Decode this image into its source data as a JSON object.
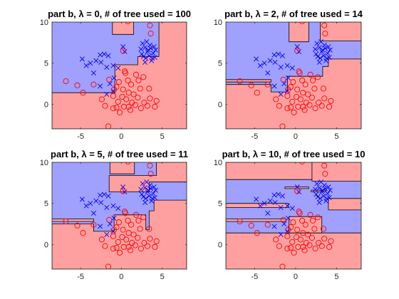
{
  "colors": {
    "class_x_region": "#a0a0ff",
    "class_o_region": "#ffa0a0",
    "x_marker": "#0000ff",
    "o_marker": "#ff0000",
    "boundary": "#000000",
    "axes": "#262626"
  },
  "points": {
    "x_class": [
      [
        -4.8,
        5.5
      ],
      [
        -4.3,
        4.7
      ],
      [
        -3.4,
        3.8
      ],
      [
        -3.8,
        5.0
      ],
      [
        -3.1,
        5.3
      ],
      [
        -2.6,
        6.0
      ],
      [
        -2.1,
        6.1
      ],
      [
        -1.6,
        5.9
      ],
      [
        -2.5,
        5.1
      ],
      [
        -1.8,
        4.5
      ],
      [
        -1.0,
        4.7
      ],
      [
        -0.4,
        4.4
      ],
      [
        -0.9,
        3.2
      ],
      [
        -1.4,
        2.5
      ],
      [
        -2.6,
        2.2
      ],
      [
        -1.8,
        1.2
      ],
      [
        -1.0,
        1.6
      ],
      [
        0.2,
        7.0
      ],
      [
        0.4,
        6.4
      ],
      [
        2.6,
        7.4
      ],
      [
        2.9,
        6.9
      ],
      [
        3.2,
        6.4
      ],
      [
        3.6,
        6.8
      ],
      [
        3.9,
        6.2
      ],
      [
        2.5,
        6.1
      ],
      [
        3.0,
        5.6
      ],
      [
        3.4,
        5.9
      ],
      [
        4.1,
        5.7
      ],
      [
        3.7,
        5.3
      ],
      [
        2.9,
        5.1
      ],
      [
        3.5,
        7.2
      ],
      [
        4.2,
        6.6
      ],
      [
        2.7,
        5.8
      ],
      [
        3.3,
        6.6
      ],
      [
        4.0,
        7.0
      ],
      [
        3.1,
        7.6
      ],
      [
        2.4,
        6.7
      ],
      [
        3.8,
        5.6
      ]
    ],
    "o_class": [
      [
        -6.8,
        2.8
      ],
      [
        -5.4,
        2.3
      ],
      [
        -4.7,
        1.4
      ],
      [
        -3.4,
        2.4
      ],
      [
        -2.4,
        0.6
      ],
      [
        -2.0,
        -0.2
      ],
      [
        -1.5,
        3.0
      ],
      [
        -1.0,
        1.0
      ],
      [
        -1.0,
        -0.5
      ],
      [
        -0.6,
        2.1
      ],
      [
        -0.4,
        0.3
      ],
      [
        -0.2,
        -1.0
      ],
      [
        -0.6,
        -0.4
      ],
      [
        0.1,
        0.9
      ],
      [
        0.2,
        1.8
      ],
      [
        0.3,
        -0.3
      ],
      [
        0.5,
        3.8
      ],
      [
        0.8,
        2.9
      ],
      [
        0.9,
        1.4
      ],
      [
        0.6,
        0.6
      ],
      [
        1.1,
        -0.7
      ],
      [
        1.3,
        0.2
      ],
      [
        1.5,
        1.2
      ],
      [
        1.2,
        2.4
      ],
      [
        1.8,
        3.6
      ],
      [
        2.1,
        2.9
      ],
      [
        2.3,
        1.9
      ],
      [
        2.0,
        0.8
      ],
      [
        2.4,
        -0.5
      ],
      [
        2.8,
        0.2
      ],
      [
        3.2,
        -0.2
      ],
      [
        3.5,
        0.7
      ],
      [
        3.4,
        1.9
      ],
      [
        4.1,
        -0.3
      ],
      [
        4.3,
        0.4
      ],
      [
        -1.6,
        -2.7
      ],
      [
        0.9,
        -0.3
      ],
      [
        1.7,
        -0.1
      ],
      [
        -0.3,
        2.7
      ],
      [
        2.7,
        3.3
      ],
      [
        0.8,
        10.1
      ],
      [
        3.5,
        9.6
      ],
      [
        0.2,
        6.5
      ],
      [
        3.6,
        8.6
      ],
      [
        0.4,
        4.0
      ],
      [
        -0.9,
        1.8
      ]
    ]
  },
  "chart_data": [
    {
      "type": "scatter",
      "title": "part b, λ = 0, # of tree used = 100",
      "xlim": [
        -8.5,
        8
      ],
      "ylim": [
        -3,
        10
      ],
      "xticks": [
        -5,
        0,
        5
      ],
      "yticks": [
        0,
        5,
        10
      ],
      "xticklabels": [
        "-5",
        "0",
        "5"
      ],
      "yticklabels": [
        "0",
        "5",
        "10"
      ],
      "regions_o": [
        [
          [
            -8.5,
            -3
          ],
          [
            8,
            -3
          ],
          [
            8,
            10
          ],
          [
            4.6,
            10
          ],
          [
            4.6,
            5.8
          ],
          [
            2.0,
            5.8
          ],
          [
            2.0,
            4.8
          ],
          [
            -0.8,
            4.8
          ],
          [
            -0.8,
            1.4
          ],
          [
            -8.5,
            1.4
          ]
        ],
        [
          [
            -1.1,
            8.5
          ],
          [
            1.5,
            8.5
          ],
          [
            1.5,
            10
          ],
          [
            -1.1,
            10
          ]
        ]
      ]
    },
    {
      "type": "scatter",
      "title": "part b, λ = 2, # of tree used = 14",
      "xlim": [
        -8.5,
        8
      ],
      "ylim": [
        -3,
        10
      ],
      "xticks": [
        -5,
        0,
        5
      ],
      "yticks": [
        0,
        5,
        10
      ],
      "xticklabels": [
        "-5",
        "0",
        "5"
      ],
      "yticklabels": [
        "0",
        "5",
        "10"
      ],
      "regions_o": [
        [
          [
            -8.5,
            -3
          ],
          [
            8,
            -3
          ],
          [
            8,
            5.5
          ],
          [
            4.0,
            5.5
          ],
          [
            4.0,
            4.6
          ],
          [
            3.3,
            4.6
          ],
          [
            3.3,
            3.4
          ],
          [
            1.0,
            3.4
          ],
          [
            -1.0,
            3.4
          ],
          [
            -1.0,
            1.5
          ],
          [
            -3.0,
            1.5
          ],
          [
            -3.0,
            2.4
          ],
          [
            -8.5,
            2.4
          ]
        ],
        [
          [
            -8.5,
            2.7
          ],
          [
            -3.0,
            2.7
          ],
          [
            -3.0,
            3.0
          ],
          [
            -8.5,
            3.0
          ]
        ],
        [
          [
            3.0,
            7.7
          ],
          [
            8,
            7.7
          ],
          [
            8,
            10
          ],
          [
            3.0,
            10
          ]
        ],
        [
          [
            -0.8,
            7.6
          ],
          [
            1.6,
            7.6
          ],
          [
            1.6,
            10
          ],
          [
            -0.8,
            10
          ]
        ]
      ]
    },
    {
      "type": "scatter",
      "title": "part b, λ = 5, # of tree used = 11",
      "xlim": [
        -8.5,
        8
      ],
      "ylim": [
        -3,
        10
      ],
      "xticks": [
        -5,
        0,
        5
      ],
      "yticks": [
        0,
        5,
        10
      ],
      "xticklabels": [
        "-5",
        "0",
        "5"
      ],
      "yticklabels": [
        "0",
        "5",
        "10"
      ],
      "regions_o": [
        [
          [
            -8.5,
            -3
          ],
          [
            8,
            -3
          ],
          [
            8,
            5.4
          ],
          [
            4.0,
            5.4
          ],
          [
            4.0,
            4.1
          ],
          [
            3.4,
            4.1
          ],
          [
            3.4,
            1.8
          ],
          [
            3.0,
            1.8
          ],
          [
            3.0,
            3.6
          ],
          [
            -0.9,
            3.6
          ],
          [
            -0.9,
            1.6
          ],
          [
            -3.4,
            1.6
          ],
          [
            -3.4,
            2.5
          ],
          [
            -8.5,
            2.5
          ]
        ],
        [
          [
            -8.5,
            2.8
          ],
          [
            -3.4,
            2.8
          ],
          [
            -3.4,
            3.1
          ],
          [
            -8.5,
            3.1
          ]
        ],
        [
          [
            -1.5,
            6.4
          ],
          [
            3.4,
            6.4
          ],
          [
            3.4,
            7.6
          ],
          [
            8,
            7.6
          ],
          [
            8,
            10
          ],
          [
            4.3,
            10
          ],
          [
            4.3,
            8.4
          ],
          [
            -1.5,
            8.4
          ]
        ],
        [
          [
            -1.4,
            8.6
          ],
          [
            1.6,
            8.6
          ],
          [
            1.6,
            10
          ],
          [
            -1.4,
            10
          ]
        ]
      ]
    },
    {
      "type": "scatter",
      "title": "part b, λ = 10, # of tree used = 10",
      "xlim": [
        -8.5,
        8
      ],
      "ylim": [
        -3,
        10
      ],
      "xticks": [
        -5,
        0,
        5
      ],
      "yticks": [
        0,
        5,
        10
      ],
      "xticklabels": [
        "-5",
        "0",
        "5"
      ],
      "yticklabels": [
        "0",
        "5",
        "10"
      ],
      "regions_o": [
        [
          [
            -8.5,
            -3
          ],
          [
            8,
            -3
          ],
          [
            8,
            1.4
          ],
          [
            -8.5,
            1.4
          ]
        ],
        [
          [
            -0.8,
            1.4
          ],
          [
            3.2,
            1.4
          ],
          [
            3.2,
            3.4
          ],
          [
            -0.8,
            3.4
          ]
        ],
        [
          [
            -8.5,
            2.8
          ],
          [
            -1.2,
            2.8
          ],
          [
            -1.2,
            3.1
          ],
          [
            -8.5,
            3.1
          ]
        ],
        [
          [
            -8.5,
            4.5
          ],
          [
            -0.9,
            4.5
          ],
          [
            -0.9,
            5.0
          ],
          [
            -8.5,
            5.0
          ]
        ],
        [
          [
            4.0,
            4.2
          ],
          [
            8,
            4.2
          ],
          [
            8,
            5.6
          ],
          [
            4.0,
            5.6
          ]
        ],
        [
          [
            -1.3,
            6.8
          ],
          [
            1.6,
            6.8
          ],
          [
            1.6,
            7.0
          ],
          [
            -1.3,
            7.0
          ]
        ],
        [
          [
            1.9,
            6.4
          ],
          [
            3.7,
            6.4
          ],
          [
            3.7,
            6.6
          ],
          [
            1.9,
            6.6
          ]
        ],
        [
          [
            -8.5,
            7.9
          ],
          [
            2.0,
            7.9
          ],
          [
            2.0,
            10
          ],
          [
            -8.5,
            10
          ]
        ],
        [
          [
            2.0,
            7.7
          ],
          [
            8,
            7.7
          ],
          [
            8,
            10
          ],
          [
            2.0,
            10
          ]
        ]
      ]
    }
  ]
}
